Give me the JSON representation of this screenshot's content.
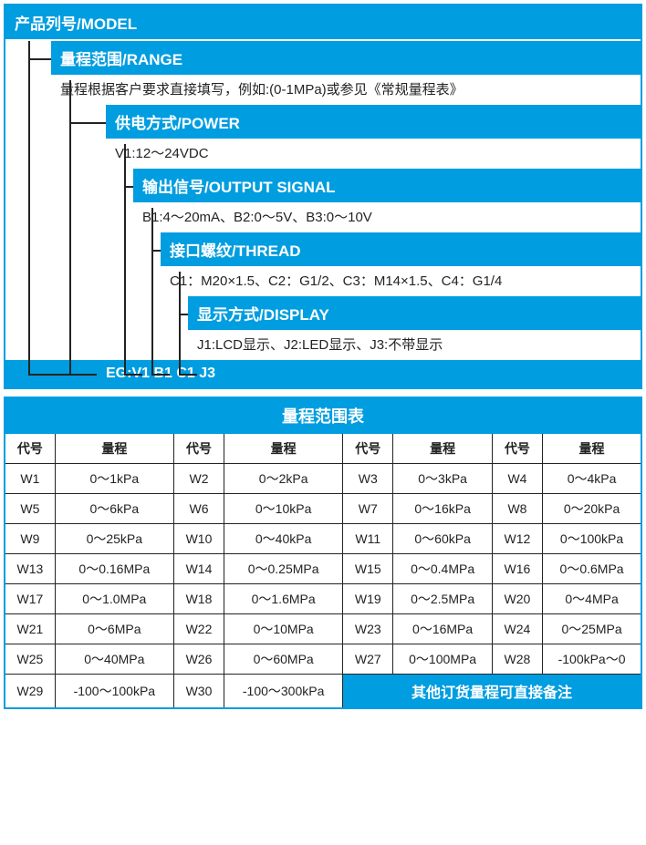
{
  "colors": {
    "brand": "#009de0",
    "text": "#232323",
    "bg": "#ffffff"
  },
  "spec": {
    "model": {
      "label": "产品列号/MODEL"
    },
    "steps": [
      {
        "indent": 50,
        "label": "量程范围/RANGE",
        "value": "量程根据客户要求直接填写，例如:(0-1MPa)或参见《常规量程表》"
      },
      {
        "indent": 110,
        "label": "供电方式/POWER",
        "value": "V1:12～24VDC"
      },
      {
        "indent": 140,
        "label": "输出信号/OUTPUT SIGNAL",
        "value": "B1:4～20mA、B2:0～5V、B3:0～10V"
      },
      {
        "indent": 170,
        "label": "接口螺纹/THREAD",
        "value": "C1：M20×1.5、C2：G1/2、C3：M14×1.5、C4：G1/4"
      },
      {
        "indent": 200,
        "label": "显示方式/DISPLAY",
        "value": "J1:LCD显示、J2:LED显示、J3:不带显示"
      }
    ],
    "example": "EG:V1 B1 C1 J3"
  },
  "rangeTable": {
    "title": "量程范围表",
    "headers": {
      "code": "代号",
      "range": "量程"
    },
    "rows": [
      [
        {
          "c": "W1",
          "r": "0～1kPa"
        },
        {
          "c": "W2",
          "r": "0～2kPa"
        },
        {
          "c": "W3",
          "r": "0～3kPa"
        },
        {
          "c": "W4",
          "r": "0～4kPa"
        }
      ],
      [
        {
          "c": "W5",
          "r": "0～6kPa"
        },
        {
          "c": "W6",
          "r": "0～10kPa"
        },
        {
          "c": "W7",
          "r": "0～16kPa"
        },
        {
          "c": "W8",
          "r": "0～20kPa"
        }
      ],
      [
        {
          "c": "W9",
          "r": "0～25kPa"
        },
        {
          "c": "W10",
          "r": "0～40kPa"
        },
        {
          "c": "W11",
          "r": "0～60kPa"
        },
        {
          "c": "W12",
          "r": "0～100kPa"
        }
      ],
      [
        {
          "c": "W13",
          "r": "0～0.16MPa"
        },
        {
          "c": "W14",
          "r": "0～0.25MPa"
        },
        {
          "c": "W15",
          "r": "0～0.4MPa"
        },
        {
          "c": "W16",
          "r": "0～0.6MPa"
        }
      ],
      [
        {
          "c": "W17",
          "r": "0～1.0MPa"
        },
        {
          "c": "W18",
          "r": "0～1.6MPa"
        },
        {
          "c": "W19",
          "r": "0～2.5MPa"
        },
        {
          "c": "W20",
          "r": "0～4MPa"
        }
      ],
      [
        {
          "c": "W21",
          "r": "0～6MPa"
        },
        {
          "c": "W22",
          "r": "0～10MPa"
        },
        {
          "c": "W23",
          "r": "0～16MPa"
        },
        {
          "c": "W24",
          "r": "0～25MPa"
        }
      ],
      [
        {
          "c": "W25",
          "r": "0～40MPa"
        },
        {
          "c": "W26",
          "r": "0～60MPa"
        },
        {
          "c": "W27",
          "r": "0～100MPa"
        },
        {
          "c": "W28",
          "r": "-100kPa～0"
        }
      ],
      [
        {
          "c": "W29",
          "r": "-100～100kPa"
        },
        {
          "c": "W30",
          "r": "-100～300kPa"
        }
      ]
    ],
    "note": "其他订货量程可直接备注"
  }
}
